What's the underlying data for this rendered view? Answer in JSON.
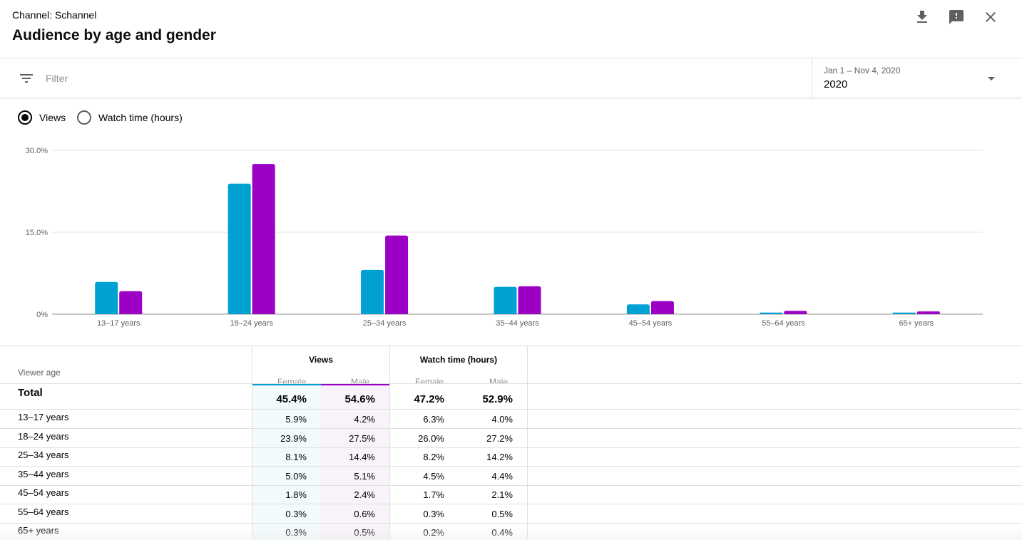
{
  "header": {
    "channel_label": "Channel: Schannel",
    "title": "Audience by age and gender",
    "icons": [
      "download-icon",
      "feedback-icon",
      "close-icon"
    ]
  },
  "filter": {
    "placeholder": "Filter",
    "icon": "filter-icon"
  },
  "date_picker": {
    "range": "Jan 1 – Nov 4, 2020",
    "value": "2020"
  },
  "metric_toggle": {
    "options": [
      {
        "label": "Views",
        "selected": true
      },
      {
        "label": "Watch time (hours)",
        "selected": false
      }
    ]
  },
  "colors": {
    "female": "#00a1d3",
    "male": "#9b00c4"
  },
  "chart_data": {
    "type": "bar",
    "categories": [
      "13–17 years",
      "18–24 years",
      "25–34 years",
      "35–44 years",
      "45–54 years",
      "55–64 years",
      "65+ years"
    ],
    "series": [
      {
        "name": "Female",
        "values": [
          5.9,
          23.9,
          8.1,
          5.0,
          1.8,
          0.3,
          0.3
        ]
      },
      {
        "name": "Male",
        "values": [
          4.2,
          27.5,
          14.4,
          5.1,
          2.4,
          0.6,
          0.5
        ]
      }
    ],
    "yticks": [
      {
        "value": 0,
        "label": "0%"
      },
      {
        "value": 15,
        "label": "15.0%"
      },
      {
        "value": 30,
        "label": "30.0%"
      }
    ],
    "ylim": [
      0,
      30
    ],
    "xlabel": "",
    "ylabel": ""
  },
  "table": {
    "row_header": "Viewer age",
    "groups": [
      {
        "label": "Views",
        "subs": [
          "Female",
          "Male"
        ]
      },
      {
        "label": "Watch time (hours)",
        "subs": [
          "Female",
          "Male"
        ]
      }
    ],
    "total": {
      "label": "Total",
      "values": [
        "45.4%",
        "54.6%",
        "47.2%",
        "52.9%"
      ]
    },
    "rows": [
      {
        "label": "13–17 years",
        "values": [
          "5.9%",
          "4.2%",
          "6.3%",
          "4.0%"
        ]
      },
      {
        "label": "18–24 years",
        "values": [
          "23.9%",
          "27.5%",
          "26.0%",
          "27.2%"
        ]
      },
      {
        "label": "25–34 years",
        "values": [
          "8.1%",
          "14.4%",
          "8.2%",
          "14.2%"
        ]
      },
      {
        "label": "35–44 years",
        "values": [
          "5.0%",
          "5.1%",
          "4.5%",
          "4.4%"
        ]
      },
      {
        "label": "45–54 years",
        "values": [
          "1.8%",
          "2.4%",
          "1.7%",
          "2.1%"
        ]
      },
      {
        "label": "55–64 years",
        "values": [
          "0.3%",
          "0.6%",
          "0.3%",
          "0.5%"
        ]
      },
      {
        "label": "65+ years",
        "values": [
          "0.3%",
          "0.5%",
          "0.2%",
          "0.4%"
        ]
      }
    ]
  }
}
